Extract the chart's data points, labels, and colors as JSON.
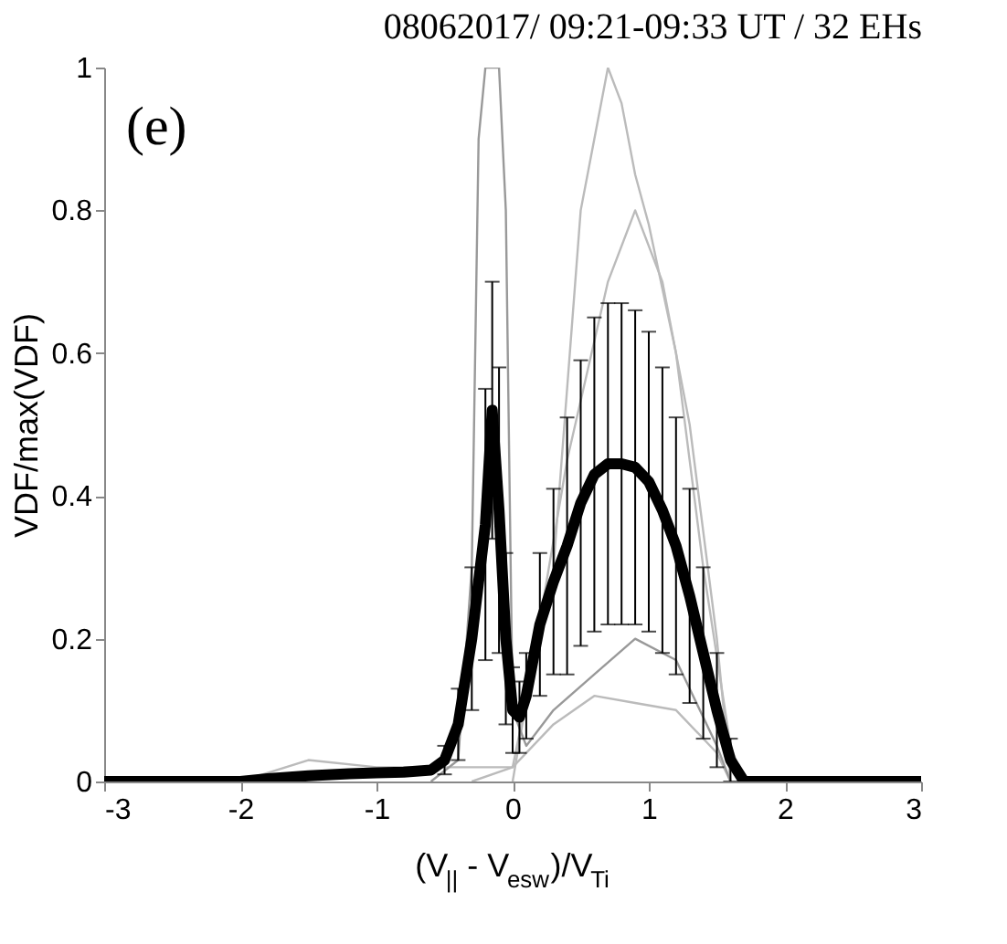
{
  "chart_data": {
    "type": "line",
    "title": "08062017/ 09:21-09:33 UT / 32 EHs",
    "xlabel": "(V$_{||}$ - V$_{esw}$)/V$_{Ti}$",
    "ylabel": "VDF/max(VDF)",
    "annotations": [
      "(e)"
    ],
    "xlim": [
      -3,
      3
    ],
    "xticks": [
      -3,
      -2,
      -1,
      0,
      1,
      2,
      3
    ],
    "ylim": [
      0,
      1
    ],
    "yticks": [
      0,
      0.2,
      0.4,
      0.6,
      0.8,
      1
    ],
    "marker": "none",
    "line_style": "solid",
    "series": [
      {
        "color": "#bbbbbb",
        "x": [
          -0.3,
          0,
          0.3,
          0.5,
          0.6,
          0.7,
          0.8,
          0.9,
          1.0,
          1.2,
          1.4,
          1.6,
          1.7
        ],
        "values": [
          0,
          0.02,
          0.3,
          0.8,
          0.9,
          1.0,
          0.95,
          0.85,
          0.78,
          0.6,
          0.3,
          0.05,
          0
        ]
      },
      {
        "color": "#bbbbbb",
        "x": [
          -2,
          -1.5,
          -1,
          -0.5,
          0,
          0.3,
          0.6,
          0.9,
          1.2,
          1.5,
          1.6
        ],
        "values": [
          0,
          0.03,
          0.02,
          0.02,
          0.02,
          0.08,
          0.12,
          0.11,
          0.1,
          0.04,
          0
        ]
      },
      {
        "color": "#bbbbbb",
        "x": [
          0,
          0.4,
          0.7,
          0.9,
          1.1,
          1.3,
          1.5,
          1.6
        ],
        "values": [
          0,
          0.45,
          0.7,
          0.8,
          0.7,
          0.5,
          0.2,
          0
        ]
      },
      {
        "color": "#999999",
        "x": [
          -0.6,
          -0.4,
          -0.3,
          -0.25,
          -0.2,
          -0.15,
          -0.1,
          -0.05,
          0,
          0.1,
          0.3,
          0.6,
          0.9,
          1.2,
          1.5,
          1.6
        ],
        "values": [
          0,
          0.03,
          0.3,
          0.9,
          1.0,
          1.0,
          1.0,
          0.8,
          0.1,
          0.05,
          0.1,
          0.15,
          0.2,
          0.17,
          0.05,
          0
        ]
      },
      {
        "color": "#000000",
        "x": [
          -3,
          -2.5,
          -2,
          -1.8,
          -1.5,
          -1.2,
          -1,
          -0.8,
          -0.6,
          -0.5,
          -0.4,
          -0.3,
          -0.2,
          -0.15,
          -0.1,
          -0.05,
          0,
          0.05,
          0.1,
          0.2,
          0.3,
          0.4,
          0.5,
          0.6,
          0.7,
          0.8,
          0.9,
          1.0,
          1.1,
          1.2,
          1.3,
          1.4,
          1.5,
          1.6,
          1.7,
          2,
          2.5,
          3
        ],
        "values": [
          0,
          0,
          0,
          0.004,
          0.008,
          0.011,
          0.012,
          0.013,
          0.016,
          0.03,
          0.08,
          0.2,
          0.36,
          0.52,
          0.38,
          0.2,
          0.1,
          0.09,
          0.12,
          0.22,
          0.28,
          0.33,
          0.39,
          0.43,
          0.445,
          0.445,
          0.44,
          0.42,
          0.38,
          0.33,
          0.26,
          0.18,
          0.1,
          0.03,
          0,
          0,
          0,
          0
        ],
        "errors": [
          null,
          null,
          null,
          null,
          null,
          null,
          null,
          null,
          null,
          0.02,
          0.05,
          0.1,
          0.19,
          0.18,
          0.2,
          0.12,
          0.06,
          0.05,
          0.06,
          0.1,
          0.13,
          0.18,
          0.2,
          0.22,
          0.225,
          0.225,
          0.22,
          0.21,
          0.2,
          0.18,
          0.15,
          0.12,
          0.08,
          0.03,
          null,
          null,
          null,
          null
        ]
      }
    ]
  }
}
